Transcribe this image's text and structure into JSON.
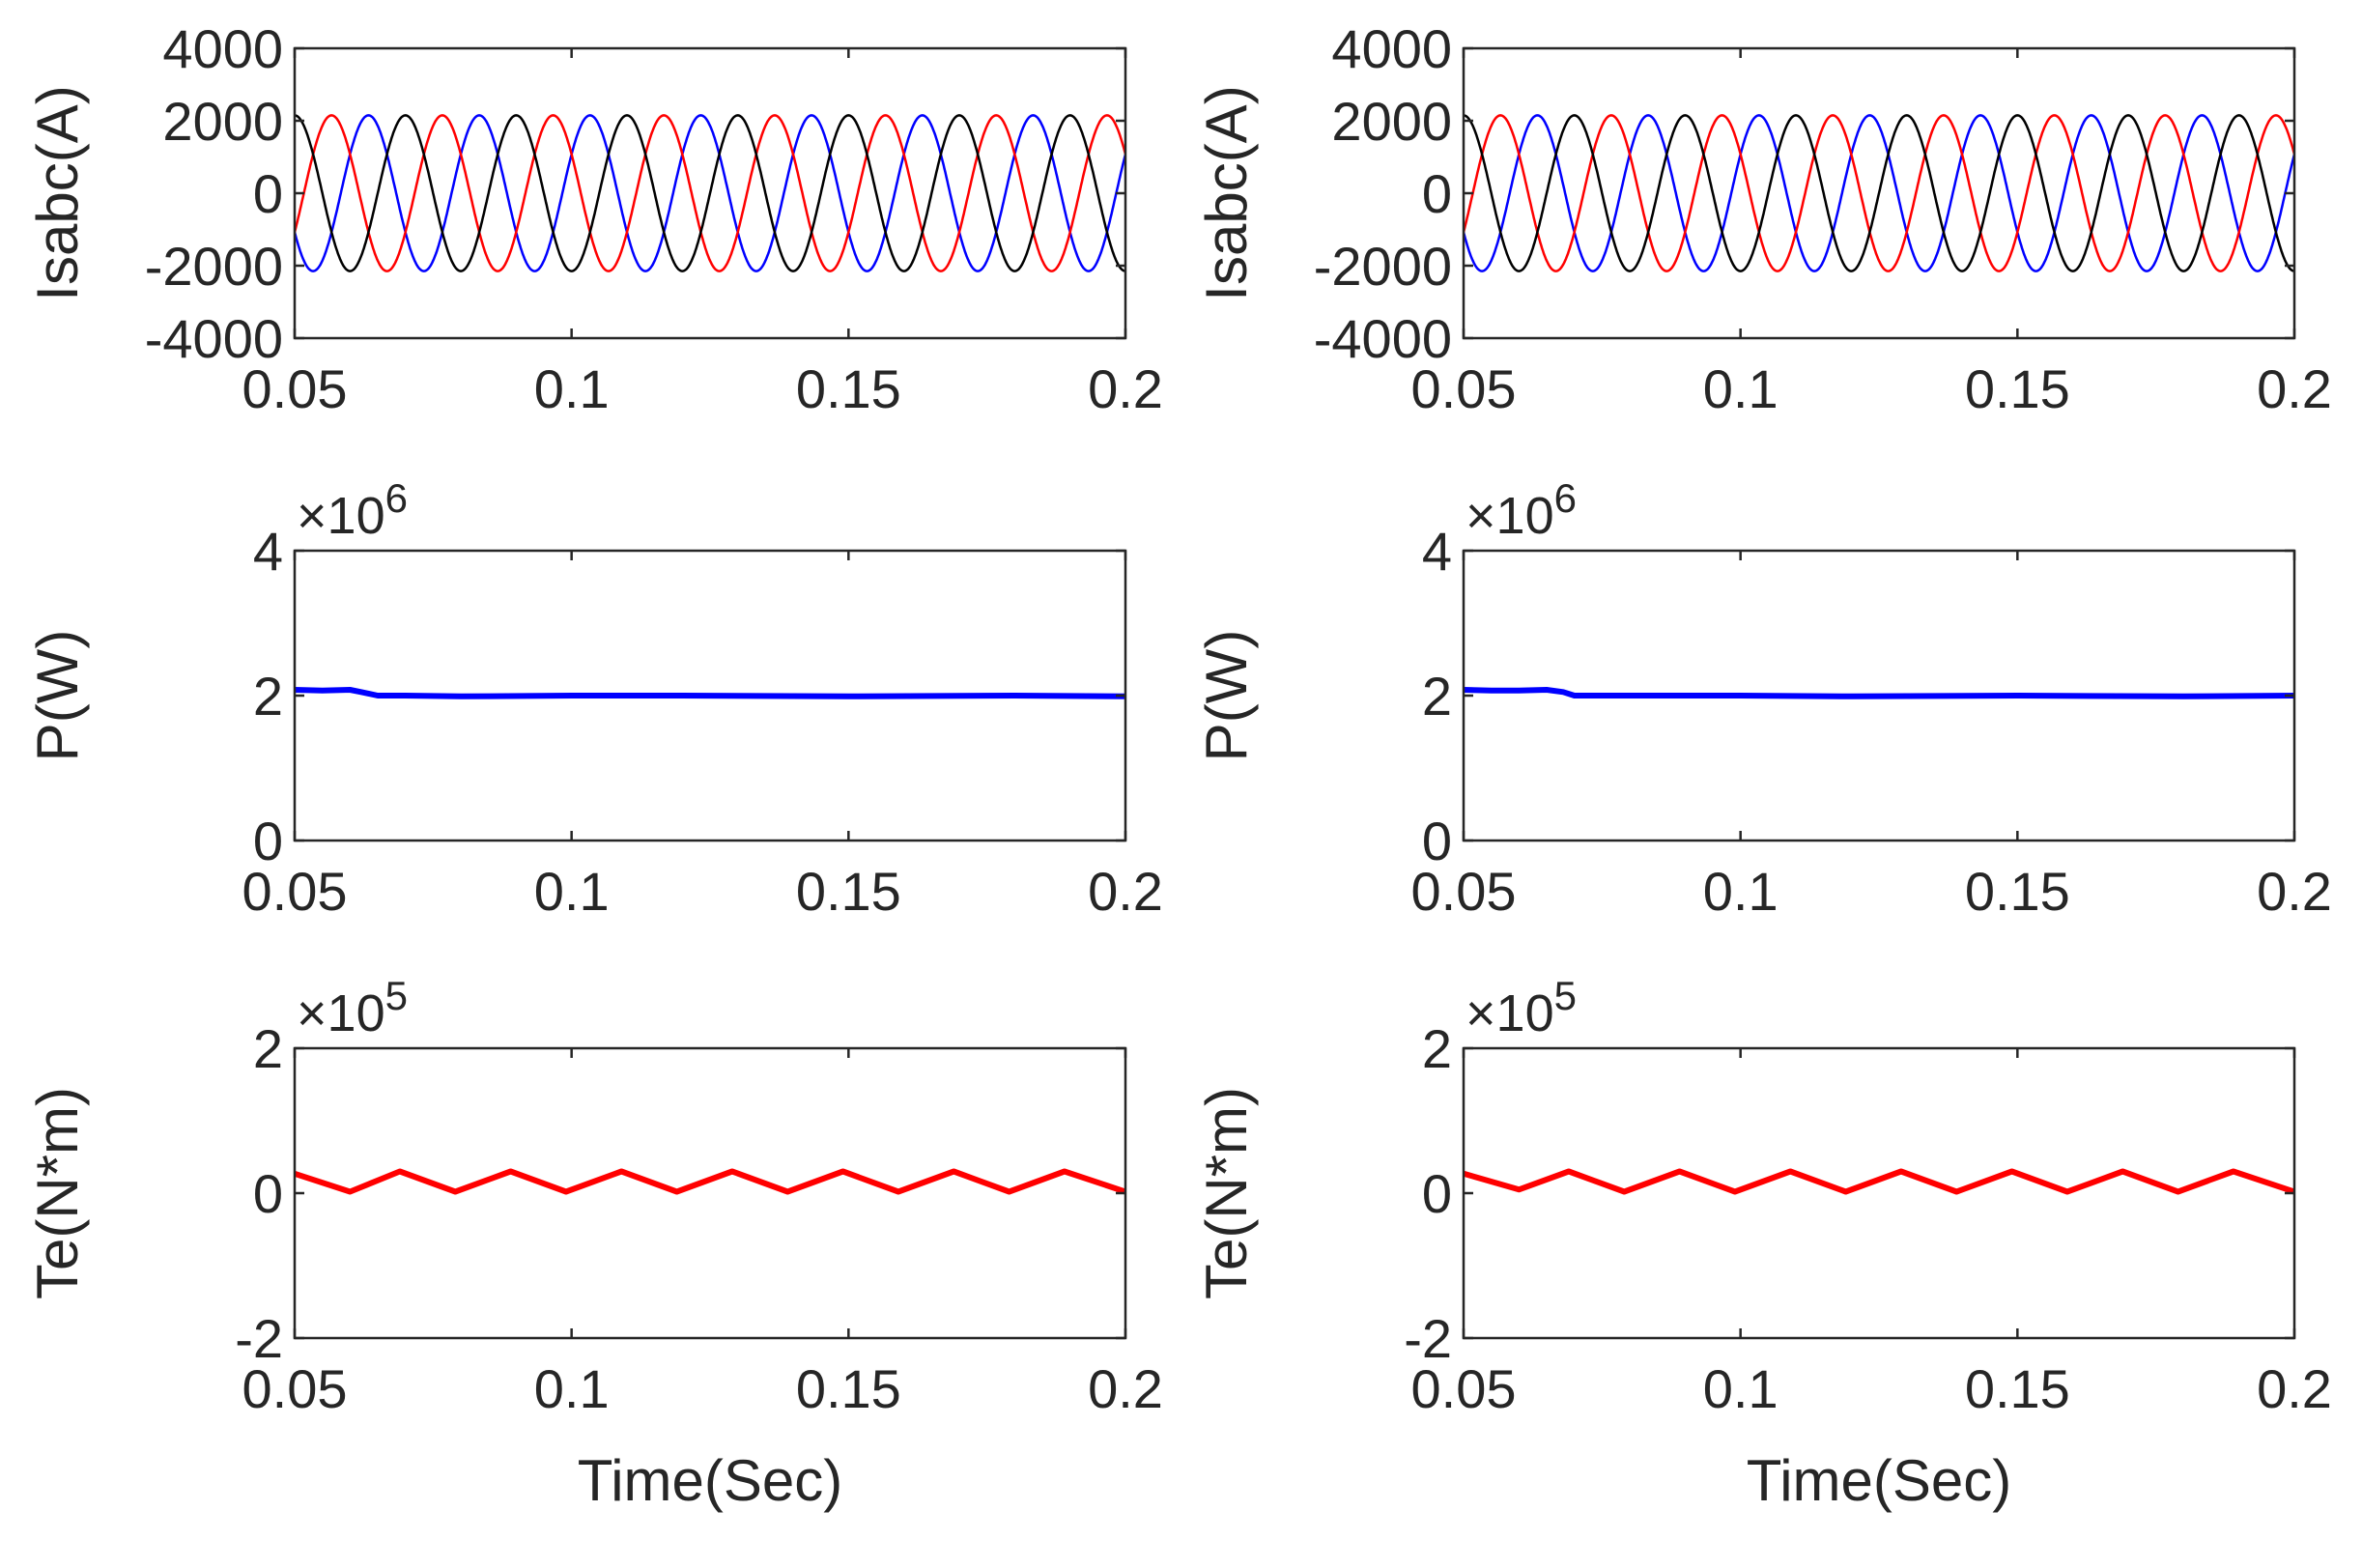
{
  "chart_data": [
    {
      "type": "line",
      "ylabel": "Isabc(A)",
      "xlabel": "",
      "xlim": [
        0.05,
        0.2
      ],
      "ylim": [
        -4000,
        4000
      ],
      "xticks": [
        "0.05",
        "0.1",
        "0.15",
        "0.2"
      ],
      "yticks": [
        "4000",
        "2000",
        "0",
        "-2000",
        "-4000"
      ],
      "exponent": "",
      "series": [
        {
          "color": "#0000ff",
          "waveform": "sine",
          "amplitude": 2150,
          "frequency_hz": 50,
          "phase_deg": 30
        },
        {
          "color": "#ff0000",
          "waveform": "sine",
          "amplitude": 2150,
          "frequency_hz": 50,
          "phase_deg": 150
        },
        {
          "color": "#000000",
          "waveform": "sine",
          "amplitude": 2150,
          "frequency_hz": 50,
          "phase_deg": 270
        }
      ]
    },
    {
      "type": "line",
      "ylabel": "Isabc(A)",
      "xlabel": "",
      "xlim": [
        0.05,
        0.2
      ],
      "ylim": [
        -4000,
        4000
      ],
      "xticks": [
        "0.05",
        "0.1",
        "0.15",
        "0.2"
      ],
      "yticks": [
        "4000",
        "2000",
        "0",
        "-2000",
        "-4000"
      ],
      "exponent": "",
      "series": [
        {
          "color": "#0000ff",
          "waveform": "sine",
          "amplitude": 2150,
          "frequency_hz": 50,
          "phase_deg": 30
        },
        {
          "color": "#ff0000",
          "waveform": "sine",
          "amplitude": 2150,
          "frequency_hz": 50,
          "phase_deg": 150
        },
        {
          "color": "#000000",
          "waveform": "sine",
          "amplitude": 2150,
          "frequency_hz": 50,
          "phase_deg": 270
        }
      ]
    },
    {
      "type": "line",
      "ylabel": "P(W)",
      "xlabel": "",
      "xlim": [
        0.05,
        0.2
      ],
      "ylim": [
        0,
        4
      ],
      "xticks": [
        "0.05",
        "0.1",
        "0.15",
        "0.2"
      ],
      "yticks": [
        "4",
        "2",
        "0"
      ],
      "exponent": "×10",
      "exponent_power": "6",
      "series": [
        {
          "color": "#0000ff",
          "x": [
            0.05,
            0.055,
            0.06,
            0.062,
            0.065,
            0.07,
            0.08,
            0.1,
            0.12,
            0.15,
            0.18,
            0.2
          ],
          "y": [
            2.08,
            2.07,
            2.08,
            2.05,
            2.0,
            2.0,
            1.99,
            2.0,
            2.0,
            1.99,
            2.0,
            1.99
          ]
        }
      ]
    },
    {
      "type": "line",
      "ylabel": "P(W)",
      "xlabel": "",
      "xlim": [
        0.05,
        0.2
      ],
      "ylim": [
        0,
        4
      ],
      "xticks": [
        "0.05",
        "0.1",
        "0.15",
        "0.2"
      ],
      "yticks": [
        "4",
        "2",
        "0"
      ],
      "exponent": "×10",
      "exponent_power": "6",
      "series": [
        {
          "color": "#0000ff",
          "x": [
            0.05,
            0.055,
            0.06,
            0.065,
            0.068,
            0.07,
            0.08,
            0.1,
            0.12,
            0.15,
            0.18,
            0.2
          ],
          "y": [
            2.08,
            2.07,
            2.07,
            2.08,
            2.05,
            2.0,
            2.0,
            2.0,
            1.99,
            2.0,
            1.99,
            2.0
          ]
        }
      ]
    },
    {
      "type": "line",
      "ylabel": "Te(N*m)",
      "xlabel": "Time(Sec)",
      "xlim": [
        0.05,
        0.2
      ],
      "ylim": [
        -2,
        2
      ],
      "xticks": [
        "0.05",
        "0.1",
        "0.15",
        "0.2"
      ],
      "yticks": [
        "2",
        "0",
        "-2"
      ],
      "exponent": "×10",
      "exponent_power": "5",
      "series": [
        {
          "color": "#ff0000",
          "x": [
            0.05,
            0.06,
            0.069,
            0.079,
            0.089,
            0.099,
            0.109,
            0.119,
            0.129,
            0.139,
            0.149,
            0.159,
            0.169,
            0.179,
            0.189,
            0.2
          ],
          "y": [
            0.27,
            0.02,
            0.3,
            0.02,
            0.3,
            0.02,
            0.3,
            0.02,
            0.3,
            0.02,
            0.3,
            0.02,
            0.3,
            0.02,
            0.3,
            0.02
          ]
        }
      ]
    },
    {
      "type": "line",
      "ylabel": "Te(N*m)",
      "xlabel": "Time(Sec)",
      "xlim": [
        0.05,
        0.2
      ],
      "ylim": [
        -2,
        2
      ],
      "xticks": [
        "0.05",
        "0.1",
        "0.15",
        "0.2"
      ],
      "yticks": [
        "2",
        "0",
        "-2"
      ],
      "exponent": "×10",
      "exponent_power": "5",
      "series": [
        {
          "color": "#ff0000",
          "x": [
            0.05,
            0.06,
            0.069,
            0.079,
            0.089,
            0.099,
            0.109,
            0.119,
            0.129,
            0.139,
            0.149,
            0.159,
            0.169,
            0.179,
            0.189,
            0.2
          ],
          "y": [
            0.27,
            0.05,
            0.3,
            0.02,
            0.3,
            0.02,
            0.3,
            0.02,
            0.3,
            0.02,
            0.3,
            0.02,
            0.3,
            0.02,
            0.3,
            0.02
          ]
        }
      ]
    }
  ]
}
